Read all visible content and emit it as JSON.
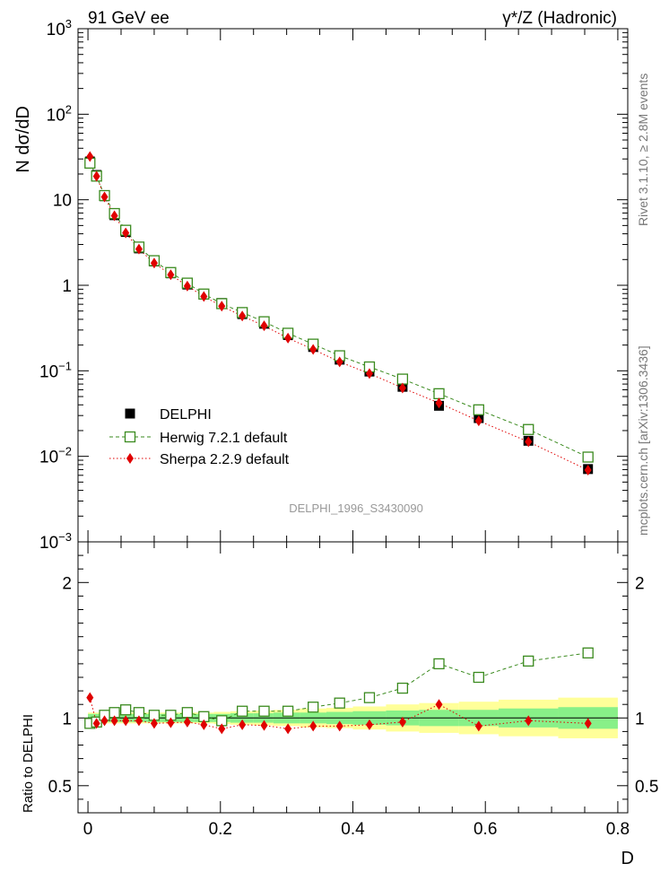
{
  "header": {
    "left": "91 GeV ee",
    "right": "γ*/Z (Hadronic)"
  },
  "side": {
    "rivet": "Rivet 3.1.10, ≥ 2.8M events",
    "mcplots": "mcplots.cern.ch [arXiv:1306.3436]"
  },
  "watermark": "DELPHI_1996_S3430090",
  "colors": {
    "data": "#000000",
    "herwig": "#3a8a1e",
    "sherpa": "#e00000",
    "band_inner": "#88f088",
    "band_outer": "#ffff99"
  },
  "chart_data": [
    {
      "type": "scatter",
      "ylabel": "N dσ/dD",
      "yscale": "log",
      "ylim": [
        0.001,
        1000
      ],
      "xlim": [
        -0.015,
        0.815
      ],
      "yticks": [
        {
          "v": 1000,
          "base": "10",
          "exp": "3"
        },
        {
          "v": 100,
          "base": "10",
          "exp": "2"
        },
        {
          "v": 10,
          "base": "10",
          "exp": ""
        },
        {
          "v": 1,
          "base": "1",
          "exp": ""
        },
        {
          "v": 0.1,
          "base": "10",
          "exp": "−1"
        },
        {
          "v": 0.01,
          "base": "10",
          "exp": "−2"
        },
        {
          "v": 0.001,
          "base": "10",
          "exp": "−3"
        }
      ],
      "legend": {
        "position": "lower-left",
        "entries": [
          "DELPHI",
          "Herwig 7.2.1 default",
          "Sherpa 2.2.9 default"
        ]
      },
      "x": [
        0.003,
        0.013,
        0.025,
        0.04,
        0.057,
        0.077,
        0.1,
        0.125,
        0.15,
        0.175,
        0.202,
        0.233,
        0.266,
        0.302,
        0.34,
        0.38,
        0.425,
        0.475,
        0.53,
        0.59,
        0.665,
        0.755
      ],
      "series": [
        {
          "name": "DELPHI",
          "values": [
            28,
            19.5,
            11,
            6.6,
            4.2,
            2.7,
            1.9,
            1.38,
            1.02,
            0.78,
            0.62,
            0.46,
            0.355,
            0.262,
            0.19,
            0.135,
            0.098,
            0.065,
            0.039,
            0.028,
            0.0152,
            0.0071
          ]
        },
        {
          "name": "Herwig 7.2.1 default",
          "values": [
            26.8,
            18.9,
            11.2,
            6.9,
            4.4,
            2.8,
            1.94,
            1.41,
            1.06,
            0.79,
            0.61,
            0.48,
            0.375,
            0.275,
            0.205,
            0.15,
            0.111,
            0.08,
            0.054,
            0.035,
            0.0206,
            0.0098
          ]
        },
        {
          "name": "Sherpa 2.2.9 default",
          "values": [
            32,
            18.8,
            10.8,
            6.5,
            4.1,
            2.65,
            1.82,
            1.33,
            0.98,
            0.74,
            0.57,
            0.437,
            0.336,
            0.241,
            0.178,
            0.127,
            0.093,
            0.063,
            0.042,
            0.026,
            0.0148,
            0.0069
          ]
        }
      ]
    },
    {
      "type": "scatter",
      "xlabel": "D",
      "ylabel": "Ratio to DELPHI",
      "ylim": [
        0.3,
        2.3
      ],
      "xlim": [
        -0.015,
        0.815
      ],
      "xticks": [
        "0",
        "0.2",
        "0.4",
        "0.6",
        "0.8"
      ],
      "yticks": [
        "0.5",
        "1",
        "2"
      ],
      "x": [
        0.003,
        0.013,
        0.025,
        0.04,
        0.057,
        0.077,
        0.1,
        0.125,
        0.15,
        0.175,
        0.202,
        0.233,
        0.266,
        0.302,
        0.34,
        0.38,
        0.425,
        0.475,
        0.53,
        0.59,
        0.665,
        0.755
      ],
      "bands": {
        "edges": [
          0,
          0.006,
          0.02,
          0.03,
          0.05,
          0.065,
          0.09,
          0.11,
          0.14,
          0.16,
          0.19,
          0.215,
          0.25,
          0.28,
          0.32,
          0.36,
          0.4,
          0.45,
          0.5,
          0.56,
          0.62,
          0.71,
          0.8
        ],
        "inner": [
          0.03,
          0.03,
          0.03,
          0.03,
          0.03,
          0.03,
          0.03,
          0.03,
          0.03,
          0.03,
          0.03,
          0.035,
          0.035,
          0.04,
          0.04,
          0.045,
          0.05,
          0.055,
          0.06,
          0.06,
          0.07,
          0.08
        ],
        "outer": [
          0.04,
          0.04,
          0.04,
          0.04,
          0.04,
          0.04,
          0.04,
          0.04,
          0.04,
          0.04,
          0.045,
          0.05,
          0.055,
          0.06,
          0.07,
          0.075,
          0.085,
          0.1,
          0.11,
          0.12,
          0.135,
          0.15
        ]
      },
      "series": [
        {
          "name": "Herwig 7.2.1 default",
          "values": [
            0.96,
            0.97,
            1.02,
            1.04,
            1.06,
            1.04,
            1.02,
            1.02,
            1.04,
            1.01,
            0.98,
            1.05,
            1.05,
            1.05,
            1.08,
            1.11,
            1.15,
            1.22,
            1.4,
            1.3,
            1.42,
            1.48
          ]
        },
        {
          "name": "Sherpa 2.2.9 default",
          "values": [
            1.15,
            0.96,
            0.98,
            0.98,
            0.98,
            0.98,
            0.96,
            0.965,
            0.97,
            0.95,
            0.92,
            0.95,
            0.945,
            0.92,
            0.94,
            0.94,
            0.95,
            0.97,
            1.1,
            0.94,
            0.98,
            0.96
          ]
        }
      ]
    }
  ]
}
